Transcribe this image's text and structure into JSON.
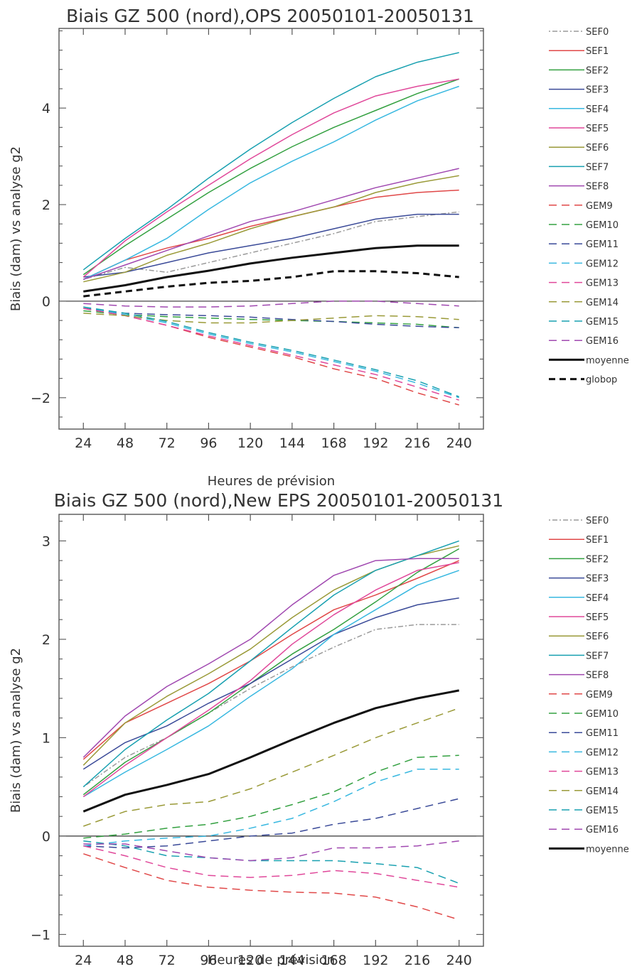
{
  "colors": {
    "SEF0": "#9a9a9a",
    "SEF1": "#e04848",
    "SEF2": "#33a040",
    "SEF3": "#3a4a98",
    "SEF4": "#38b8e0",
    "SEF5": "#e0489a",
    "SEF6": "#9a9a38",
    "SEF7": "#18a0b0",
    "SEF8": "#a048b0",
    "GEM9": "#e04848",
    "GEM10": "#33a040",
    "GEM11": "#3a4a98",
    "GEM12": "#38b8e0",
    "GEM13": "#e0489a",
    "GEM14": "#9a9a38",
    "GEM15": "#18a0b0",
    "GEM16": "#a048b0",
    "moyenne": "#111111",
    "globop": "#111111"
  },
  "chart_data": [
    {
      "type": "line",
      "title": "Biais GZ 500 (nord),OPS 20050101-20050131",
      "xlabel": "Heures de prévision",
      "ylabel": "Biais (dam) vs analyse g2",
      "x": [
        24,
        48,
        72,
        96,
        120,
        144,
        168,
        192,
        216,
        240
      ],
      "xlim": [
        10,
        254
      ],
      "ylim": [
        -2.65,
        5.65
      ],
      "yticks": [
        -2,
        0,
        2,
        4
      ],
      "zero_line": true,
      "legend": "right",
      "series": [
        {
          "name": "SEF0",
          "style": "dashdot",
          "values": [
            0.45,
            0.7,
            0.6,
            0.8,
            1.0,
            1.2,
            1.4,
            1.65,
            1.75,
            1.85
          ]
        },
        {
          "name": "SEF1",
          "style": "solid",
          "values": [
            0.45,
            0.85,
            1.1,
            1.3,
            1.55,
            1.75,
            1.95,
            2.15,
            2.25,
            2.3
          ]
        },
        {
          "name": "SEF2",
          "style": "solid",
          "values": [
            0.55,
            1.15,
            1.7,
            2.25,
            2.75,
            3.2,
            3.6,
            3.95,
            4.3,
            4.6
          ]
        },
        {
          "name": "SEF3",
          "style": "solid",
          "values": [
            0.5,
            0.6,
            0.8,
            1.0,
            1.15,
            1.3,
            1.5,
            1.7,
            1.8,
            1.8
          ]
        },
        {
          "name": "SEF4",
          "style": "solid",
          "values": [
            0.45,
            0.85,
            1.3,
            1.9,
            2.45,
            2.9,
            3.3,
            3.75,
            4.15,
            4.45
          ]
        },
        {
          "name": "SEF5",
          "style": "solid",
          "values": [
            0.5,
            1.25,
            1.85,
            2.4,
            2.95,
            3.45,
            3.9,
            4.25,
            4.45,
            4.6
          ]
        },
        {
          "name": "SEF6",
          "style": "solid",
          "values": [
            0.4,
            0.6,
            0.95,
            1.2,
            1.5,
            1.75,
            1.95,
            2.25,
            2.45,
            2.6
          ]
        },
        {
          "name": "SEF7",
          "style": "solid",
          "values": [
            0.65,
            1.3,
            1.9,
            2.55,
            3.15,
            3.7,
            4.2,
            4.65,
            4.95,
            5.15
          ]
        },
        {
          "name": "SEF8",
          "style": "solid",
          "values": [
            0.45,
            0.75,
            1.05,
            1.35,
            1.65,
            1.85,
            2.1,
            2.35,
            2.55,
            2.75
          ]
        },
        {
          "name": "GEM9",
          "style": "dashed",
          "values": [
            -0.15,
            -0.3,
            -0.5,
            -0.75,
            -0.95,
            -1.15,
            -1.4,
            -1.6,
            -1.9,
            -2.15
          ]
        },
        {
          "name": "GEM10",
          "style": "dashed",
          "values": [
            -0.2,
            -0.28,
            -0.32,
            -0.35,
            -0.38,
            -0.4,
            -0.42,
            -0.45,
            -0.48,
            -0.55
          ]
        },
        {
          "name": "GEM11",
          "style": "dashed",
          "values": [
            -0.15,
            -0.25,
            -0.28,
            -0.3,
            -0.33,
            -0.38,
            -0.42,
            -0.48,
            -0.52,
            -0.55
          ]
        },
        {
          "name": "GEM12",
          "style": "dashed",
          "values": [
            -0.12,
            -0.28,
            -0.45,
            -0.68,
            -0.88,
            -1.05,
            -1.25,
            -1.45,
            -1.7,
            -2.0
          ]
        },
        {
          "name": "GEM13",
          "style": "dashed",
          "values": [
            -0.15,
            -0.3,
            -0.5,
            -0.72,
            -0.92,
            -1.12,
            -1.32,
            -1.52,
            -1.78,
            -2.05
          ]
        },
        {
          "name": "GEM14",
          "style": "dashed",
          "values": [
            -0.25,
            -0.3,
            -0.4,
            -0.45,
            -0.45,
            -0.4,
            -0.35,
            -0.3,
            -0.32,
            -0.38
          ]
        },
        {
          "name": "GEM15",
          "style": "dashed",
          "values": [
            -0.12,
            -0.25,
            -0.42,
            -0.65,
            -0.85,
            -1.02,
            -1.22,
            -1.42,
            -1.65,
            -1.98
          ]
        },
        {
          "name": "GEM16",
          "style": "dashed",
          "values": [
            -0.05,
            -0.1,
            -0.12,
            -0.12,
            -0.1,
            -0.05,
            0.0,
            0.0,
            -0.05,
            -0.1
          ]
        },
        {
          "name": "moyenne",
          "style": "thick",
          "values": [
            0.2,
            0.33,
            0.5,
            0.63,
            0.78,
            0.9,
            1.0,
            1.1,
            1.15,
            1.15
          ]
        },
        {
          "name": "globop",
          "style": "thickdash",
          "values": [
            0.1,
            0.2,
            0.3,
            0.38,
            0.42,
            0.5,
            0.62,
            0.62,
            0.58,
            0.5
          ]
        }
      ]
    },
    {
      "type": "line",
      "title": "Biais GZ 500 (nord),New EPS 20050101-20050131",
      "xlabel": "Heures de prévision",
      "ylabel": "Biais (dam) vs analyse g2",
      "x": [
        24,
        48,
        72,
        96,
        120,
        144,
        168,
        192,
        216,
        240
      ],
      "xlim": [
        10,
        254
      ],
      "ylim": [
        -1.12,
        3.27
      ],
      "yticks": [
        -1,
        0,
        1,
        2,
        3
      ],
      "zero_line": true,
      "legend": "right",
      "series": [
        {
          "name": "SEF0",
          "style": "dashdot",
          "values": [
            0.5,
            0.8,
            1.0,
            1.25,
            1.5,
            1.72,
            1.92,
            2.1,
            2.15,
            2.15
          ]
        },
        {
          "name": "SEF1",
          "style": "solid",
          "values": [
            0.78,
            1.15,
            1.35,
            1.55,
            1.78,
            2.05,
            2.3,
            2.45,
            2.62,
            2.8
          ]
        },
        {
          "name": "SEF2",
          "style": "solid",
          "values": [
            0.42,
            0.75,
            1.0,
            1.25,
            1.55,
            1.85,
            2.1,
            2.38,
            2.68,
            2.92
          ]
        },
        {
          "name": "SEF3",
          "style": "solid",
          "values": [
            0.68,
            0.95,
            1.12,
            1.35,
            1.55,
            1.8,
            2.05,
            2.22,
            2.35,
            2.42
          ]
        },
        {
          "name": "SEF4",
          "style": "solid",
          "values": [
            0.4,
            0.65,
            0.88,
            1.12,
            1.42,
            1.7,
            2.05,
            2.3,
            2.55,
            2.7
          ]
        },
        {
          "name": "SEF5",
          "style": "solid",
          "values": [
            0.4,
            0.72,
            1.0,
            1.28,
            1.58,
            1.95,
            2.25,
            2.5,
            2.7,
            2.78
          ]
        },
        {
          "name": "SEF6",
          "style": "solid",
          "values": [
            0.72,
            1.15,
            1.42,
            1.65,
            1.9,
            2.22,
            2.5,
            2.7,
            2.85,
            2.95
          ]
        },
        {
          "name": "SEF7",
          "style": "solid",
          "values": [
            0.5,
            0.88,
            1.18,
            1.45,
            1.78,
            2.12,
            2.45,
            2.7,
            2.85,
            3.0
          ]
        },
        {
          "name": "SEF8",
          "style": "solid",
          "values": [
            0.8,
            1.22,
            1.52,
            1.75,
            2.0,
            2.35,
            2.65,
            2.8,
            2.82,
            2.82
          ]
        },
        {
          "name": "GEM9",
          "style": "dashed",
          "values": [
            -0.18,
            -0.32,
            -0.45,
            -0.52,
            -0.55,
            -0.57,
            -0.58,
            -0.62,
            -0.72,
            -0.85
          ]
        },
        {
          "name": "GEM10",
          "style": "dashed",
          "values": [
            -0.02,
            0.02,
            0.08,
            0.12,
            0.2,
            0.32,
            0.45,
            0.65,
            0.8,
            0.82
          ]
        },
        {
          "name": "GEM11",
          "style": "dashed",
          "values": [
            -0.1,
            -0.12,
            -0.1,
            -0.05,
            0.0,
            0.03,
            0.12,
            0.18,
            0.28,
            0.38
          ]
        },
        {
          "name": "GEM12",
          "style": "dashed",
          "values": [
            -0.1,
            -0.05,
            -0.02,
            0.0,
            0.08,
            0.18,
            0.35,
            0.55,
            0.68,
            0.68
          ]
        },
        {
          "name": "GEM13",
          "style": "dashed",
          "values": [
            -0.1,
            -0.2,
            -0.32,
            -0.4,
            -0.42,
            -0.4,
            -0.35,
            -0.38,
            -0.45,
            -0.52
          ]
        },
        {
          "name": "GEM14",
          "style": "dashed",
          "values": [
            0.1,
            0.25,
            0.32,
            0.35,
            0.48,
            0.65,
            0.82,
            1.0,
            1.15,
            1.3
          ]
        },
        {
          "name": "GEM15",
          "style": "dashed",
          "values": [
            -0.05,
            -0.1,
            -0.2,
            -0.22,
            -0.25,
            -0.25,
            -0.25,
            -0.28,
            -0.32,
            -0.48
          ]
        },
        {
          "name": "GEM16",
          "style": "dashed",
          "values": [
            -0.08,
            -0.08,
            -0.15,
            -0.22,
            -0.25,
            -0.22,
            -0.12,
            -0.12,
            -0.1,
            -0.05
          ]
        },
        {
          "name": "moyenne",
          "style": "thick",
          "values": [
            0.25,
            0.42,
            0.52,
            0.63,
            0.8,
            0.98,
            1.15,
            1.3,
            1.4,
            1.48
          ]
        }
      ]
    }
  ]
}
